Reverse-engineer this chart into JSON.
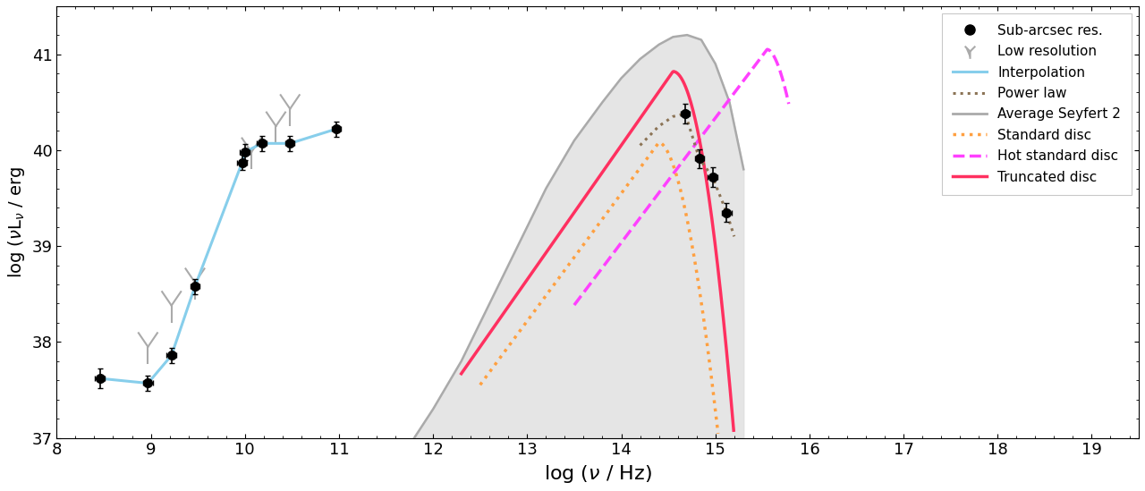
{
  "xlim": [
    8,
    19.5
  ],
  "ylim": [
    37,
    41.5
  ],
  "xlabel": "log ($\\nu$ / Hz)",
  "ylabel": "log ($\\nu$L$_{\\nu}$ / erg",
  "xticks": [
    8,
    9,
    10,
    11,
    12,
    13,
    14,
    15,
    16,
    17,
    18,
    19
  ],
  "yticks": [
    37,
    38,
    39,
    40,
    41
  ],
  "sub_arcsec_x": [
    8.46,
    8.97,
    9.22,
    9.47,
    9.97,
    10.0,
    10.18,
    10.48,
    10.97,
    14.68,
    14.83,
    14.97,
    15.12
  ],
  "sub_arcsec_y": [
    37.62,
    37.57,
    37.86,
    38.58,
    39.87,
    39.98,
    40.07,
    40.07,
    40.22,
    40.38,
    39.91,
    39.72,
    39.35
  ],
  "sub_arcsec_xerr": [
    0.05,
    0.05,
    0.05,
    0.05,
    0.05,
    0.05,
    0.05,
    0.05,
    0.05,
    0.05,
    0.05,
    0.05,
    0.05
  ],
  "sub_arcsec_yerr": [
    0.1,
    0.08,
    0.08,
    0.08,
    0.08,
    0.08,
    0.08,
    0.08,
    0.08,
    0.1,
    0.1,
    0.1,
    0.1
  ],
  "low_res_x": [
    8.97,
    9.22,
    9.47,
    10.07,
    10.33,
    10.48
  ],
  "low_res_y": [
    37.95,
    38.38,
    38.62,
    39.98,
    40.25,
    40.43
  ],
  "interp_x": [
    8.46,
    8.97,
    9.22,
    9.47,
    9.97,
    10.0,
    10.18,
    10.48,
    10.97
  ],
  "interp_y": [
    37.62,
    37.57,
    37.86,
    38.58,
    39.87,
    39.98,
    40.07,
    40.07,
    40.22
  ],
  "interp_color": "#87CEEB",
  "power_law_color": "#8B7355",
  "seyfert_color": "#AAAAAA",
  "seyfert_fill_color": "#DDDDDD",
  "standard_disc_color": "#FFA040",
  "hot_disc_color": "#FF40FF",
  "truncated_disc_color": "#FF3060",
  "seyfert_x": [
    11.8,
    12.0,
    12.3,
    12.6,
    12.9,
    13.2,
    13.5,
    13.8,
    14.0,
    14.2,
    14.4,
    14.55,
    14.7,
    14.85,
    15.0,
    15.15,
    15.3
  ],
  "seyfert_upper": [
    37.0,
    37.3,
    37.8,
    38.4,
    39.0,
    39.6,
    40.1,
    40.5,
    40.75,
    40.95,
    41.1,
    41.18,
    41.2,
    41.15,
    40.9,
    40.5,
    39.8
  ],
  "std_disc_peak_x": 14.4,
  "std_disc_peak_y": 40.08,
  "hot_disc_peak_x": 15.55,
  "hot_disc_peak_y": 41.05,
  "trun_disc_peak_x": 14.55,
  "trun_disc_peak_y": 40.82,
  "pl_x": [
    14.2,
    14.4,
    14.55,
    14.68,
    14.83,
    14.97,
    15.12,
    15.2
  ],
  "pl_y": [
    40.05,
    40.25,
    40.35,
    40.38,
    39.91,
    39.72,
    39.35,
    39.1
  ]
}
